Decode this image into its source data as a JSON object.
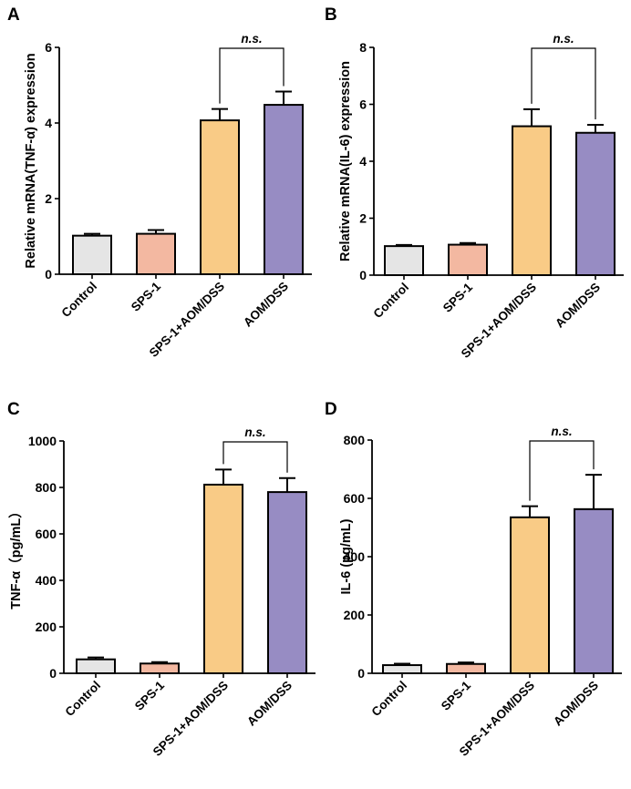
{
  "chart_data": [
    {
      "id": "A",
      "panel_label": "A",
      "type": "bar",
      "categories": [
        "Control",
        "SPS-1",
        "SPS-1+AOM/DSS",
        "AOM/DSS"
      ],
      "values": [
        1.02,
        1.07,
        4.07,
        4.48
      ],
      "errors": [
        0.05,
        0.1,
        0.3,
        0.35
      ],
      "colors": [
        "#e5e5e5",
        "#f3b8a1",
        "#f9cb86",
        "#978cc3"
      ],
      "ylabel": "Relative mRNA(TNF-α) expression",
      "ylim": [
        0,
        6
      ],
      "yticks": [
        "0",
        "2",
        "4",
        "6"
      ],
      "comparison": {
        "from": 2,
        "to": 3,
        "label": "n.s."
      }
    },
    {
      "id": "B",
      "panel_label": "B",
      "type": "bar",
      "categories": [
        "Control",
        "SPS-1",
        "SPS-1+AOM/DSS",
        "AOM/DSS"
      ],
      "values": [
        1.02,
        1.07,
        5.23,
        5.0
      ],
      "errors": [
        0.04,
        0.06,
        0.6,
        0.28
      ],
      "colors": [
        "#e5e5e5",
        "#f3b8a1",
        "#f9cb86",
        "#978cc3"
      ],
      "ylabel": "Relative mRNA(IL-6) expression",
      "ylim": [
        0,
        8
      ],
      "yticks": [
        "0",
        "2",
        "4",
        "6",
        "8"
      ],
      "comparison": {
        "from": 2,
        "to": 3,
        "label": "n.s."
      }
    },
    {
      "id": "C",
      "panel_label": "C",
      "type": "bar",
      "categories": [
        "Control",
        "SPS-1",
        "SPS-1+AOM/DSS",
        "AOM/DSS"
      ],
      "values": [
        60,
        42,
        812,
        780
      ],
      "errors": [
        8,
        6,
        65,
        60
      ],
      "colors": [
        "#e5e5e5",
        "#f3b8a1",
        "#f9cb86",
        "#978cc3"
      ],
      "ylabel": "TNF-α（pg/mL）",
      "ylim": [
        0,
        1000
      ],
      "yticks": [
        "0",
        "200",
        "400",
        "600",
        "800",
        "1000"
      ],
      "comparison": {
        "from": 2,
        "to": 3,
        "label": "n.s."
      }
    },
    {
      "id": "D",
      "panel_label": "D",
      "type": "bar",
      "categories": [
        "Control",
        "SPS-1",
        "SPS-1+AOM/DSS",
        "AOM/DSS"
      ],
      "values": [
        28,
        32,
        535,
        563
      ],
      "errors": [
        5,
        5,
        38,
        118
      ],
      "colors": [
        "#e5e5e5",
        "#f3b8a1",
        "#f9cb86",
        "#978cc3"
      ],
      "ylabel": "IL-6 (pg/mL)",
      "ylim": [
        0,
        800
      ],
      "yticks": [
        "0",
        "200",
        "400",
        "600",
        "800"
      ],
      "comparison": {
        "from": 2,
        "to": 3,
        "label": "n.s."
      }
    }
  ]
}
